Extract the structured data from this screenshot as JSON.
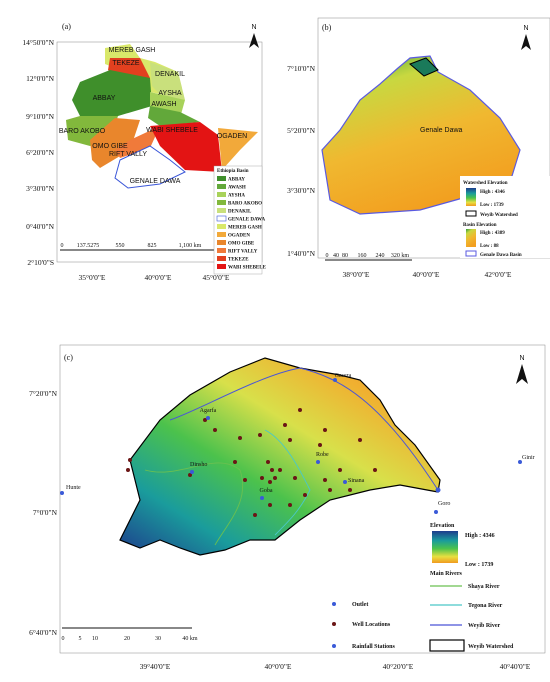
{
  "panel_a": {
    "label": "(a)",
    "north": "N",
    "lat_labels": [
      "14°50'0\"N",
      "12°0'0\"N",
      "9°10'0\"N",
      "6°20'0\"N",
      "3°30'0\"N",
      "0°40'0\"N",
      "2°10'0\"S"
    ],
    "lon_labels": [
      "35°0'0\"E",
      "40°0'0\"E",
      "45°0'0\"E"
    ],
    "basin_labels": [
      "MEREB GASH",
      "TEKEZE",
      "DENAKIL",
      "ABBAY",
      "AYSHA",
      "AWASH",
      "BARO AKOBO",
      "WABI SHEBELE",
      "OGADEN",
      "OMO GIBE",
      "RIFT VALLY",
      "GENALE DAWA"
    ],
    "legend": {
      "title": "Ethiopia Basin",
      "items": [
        {
          "label": "ABBAY",
          "color": "#3f8f2b"
        },
        {
          "label": "AWASH",
          "color": "#62a83a"
        },
        {
          "label": "AYSHA",
          "color": "#a8d25a"
        },
        {
          "label": "BARO AKOBO",
          "color": "#82b83c"
        },
        {
          "label": "DENAKIL",
          "color": "#c9e07c"
        },
        {
          "label": "GENALE DAWA",
          "color": "#ffffff"
        },
        {
          "label": "MEREB GASH",
          "color": "#d9e86a"
        },
        {
          "label": "OGADEN",
          "color": "#f2a93a"
        },
        {
          "label": "OMO GIBE",
          "color": "#e9862c"
        },
        {
          "label": "RIFT VALLY",
          "color": "#f07a3a"
        },
        {
          "label": "TEKEZE",
          "color": "#e2401f"
        },
        {
          "label": "WABI SHEBELE",
          "color": "#e31414"
        }
      ]
    },
    "scale": [
      "0",
      "137.5275",
      "550",
      "825",
      "1,100 km"
    ]
  },
  "panel_b": {
    "label": "(b)",
    "north": "N",
    "lat_labels": [
      "7°10'0\"N",
      "5°20'0\"N",
      "3°30'0\"N",
      "1°40'0\"N"
    ],
    "lon_labels": [
      "38°0'0\"E",
      "40°0'0\"E",
      "42°0'0\"E"
    ],
    "basin_name": "Genale Dawa",
    "legend": {
      "title1": "Watershed Elevation",
      "high1": "High : 4346",
      "low1": "Low : 1739",
      "watershed": "Weyib Watershed",
      "title2": "Basin Elevation",
      "high2": "High : 4389",
      "low2": "Low : 88",
      "basin": "Genale Dawa Basin"
    },
    "scale": [
      "0",
      "40",
      "80",
      "160",
      "240",
      "320 km"
    ]
  },
  "panel_c": {
    "label": "(c)",
    "north": "N",
    "lat_labels": [
      "7°20'0\"N",
      "7°0'0\"N",
      "6°40'0\"N"
    ],
    "lon_labels": [
      "39°40'0\"E",
      "40°0'0\"E",
      "40°20'0\"E",
      "40°40'0\"E"
    ],
    "stations": [
      "Hunte",
      "Agarfa",
      "Dinsho",
      "Goba",
      "Robe",
      "Gasera",
      "Sinana",
      "Goro",
      "Ginir"
    ],
    "legend": {
      "elevation": "Elevation",
      "high": "High : 4346",
      "low": "Low : 1739",
      "rivers": "Main Rivers",
      "shaya": "Shaya River",
      "tegona": "Tegona River",
      "weyib": "Weyib River",
      "outlet": "Outlet",
      "wells": "Well Locations",
      "rain": "Rainfall Stations",
      "watershed": "Weyib Watershed"
    },
    "scale": [
      "0",
      "5",
      "10",
      "20",
      "30",
      "40 km"
    ]
  }
}
